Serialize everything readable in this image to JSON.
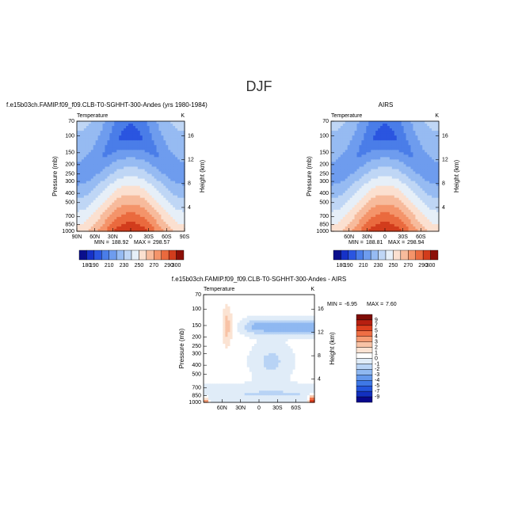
{
  "title": "DJF",
  "chart_data": [
    {
      "type": "contour",
      "title": "f.e15b03ch.FAMIP.f09_f09.CLB-T0-SGHHT-300-Andes (yrs 1980-1984)",
      "left_string": "Temperature",
      "right_string": "K",
      "ylabel": "Pressure (mb)",
      "y2label": "Height (km)",
      "xlim": [
        90,
        -90
      ],
      "xticks": [
        {
          "value": 90,
          "label": "90N"
        },
        {
          "value": 60,
          "label": "60N"
        },
        {
          "value": 30,
          "label": "30N"
        },
        0,
        {
          "value": -30,
          "label": "30S"
        },
        {
          "value": -60,
          "label": "60S"
        },
        {
          "value": -90,
          "label": "90S"
        }
      ],
      "ylim": [
        1000,
        70
      ],
      "ylog": true,
      "yticks": [
        1000,
        850,
        700,
        500,
        400,
        300,
        250,
        200,
        150,
        100,
        70
      ],
      "y2lim": [
        0,
        18.48
      ],
      "y2ticks": [
        4,
        8,
        12,
        16
      ],
      "min_label": "MIN =",
      "min": 188.92,
      "max_label": "MAX =",
      "max": 298.57,
      "colorbar": {
        "orientation": "horizontal",
        "colors": [
          "#0a0f8c",
          "#1632c8",
          "#2a55e0",
          "#4a7de8",
          "#6e9cee",
          "#96bbf2",
          "#bfd6f5",
          "#e6eff8",
          "#fbe0d0",
          "#f7bb9c",
          "#f4946a",
          "#ea6a3e",
          "#d23c1c",
          "#8c0f08"
        ],
        "ticks": [
          180,
          190,
          210,
          230,
          250,
          270,
          290,
          300
        ]
      }
    },
    {
      "type": "contour",
      "title": "AIRS",
      "left_string": "Temperature",
      "right_string": "K",
      "ylabel": "Pressure (mb)",
      "y2label": "Height (km)",
      "xlim": [
        90,
        -90
      ],
      "xticks": [
        {
          "value": 60,
          "label": "60N"
        },
        {
          "value": 30,
          "label": "30N"
        },
        0,
        {
          "value": -30,
          "label": "30S"
        },
        {
          "value": -60,
          "label": "60S"
        }
      ],
      "ylim": [
        1000,
        70
      ],
      "ylog": true,
      "yticks": [
        1000,
        850,
        700,
        500,
        400,
        300,
        250,
        200,
        150,
        100,
        70
      ],
      "y2lim": [
        0,
        18.48
      ],
      "y2ticks": [
        4,
        8,
        12,
        16
      ],
      "min_label": "MIN =",
      "min": 188.81,
      "max_label": "MAX =",
      "max": 298.94,
      "colorbar": {
        "orientation": "horizontal",
        "colors": [
          "#0a0f8c",
          "#1632c8",
          "#2a55e0",
          "#4a7de8",
          "#6e9cee",
          "#96bbf2",
          "#bfd6f5",
          "#e6eff8",
          "#fbe0d0",
          "#f7bb9c",
          "#f4946a",
          "#ea6a3e",
          "#d23c1c",
          "#8c0f08"
        ],
        "ticks": [
          180,
          190,
          210,
          230,
          250,
          270,
          290,
          300
        ]
      }
    },
    {
      "type": "contour",
      "title": "f.e15b03ch.FAMIP.f09_f09.CLB-T0-SGHHT-300-Andes - AIRS",
      "left_string": "Temperature",
      "right_string": "K",
      "ylabel": "Pressure (mb)",
      "y2label": "Height (km)",
      "xlim": [
        90,
        -90
      ],
      "xticks": [
        {
          "value": 60,
          "label": "60N"
        },
        {
          "value": 30,
          "label": "30N"
        },
        0,
        {
          "value": -30,
          "label": "30S"
        },
        {
          "value": -60,
          "label": "60S"
        }
      ],
      "ylim": [
        1000,
        70
      ],
      "ylog": true,
      "yticks": [
        1000,
        850,
        700,
        500,
        400,
        300,
        250,
        200,
        150,
        100,
        70
      ],
      "y2lim": [
        0,
        18.48
      ],
      "y2ticks": [
        4,
        8,
        12,
        16
      ],
      "min_label": "MIN =",
      "min": -6.95,
      "max_label": "MAX =",
      "max": {
        "value": 7.6,
        "label": "7.60"
      },
      "colorbar": {
        "orientation": "vertical",
        "colors": [
          "#7f0c06",
          "#b71f10",
          "#dd3f1e",
          "#ef6e44",
          "#f59c74",
          "#f8c3a6",
          "#fbe3d3",
          "#ffffff",
          "#e0ecf8",
          "#b8d3f5",
          "#8fb8f1",
          "#6498ec",
          "#3f78e6",
          "#2455dc",
          "#1230c0",
          "#08088c"
        ],
        "ticks": [
          9,
          7,
          5,
          4,
          3,
          2,
          1,
          0,
          -1,
          -2,
          -3,
          -4,
          -5,
          -7,
          -9
        ]
      }
    }
  ]
}
